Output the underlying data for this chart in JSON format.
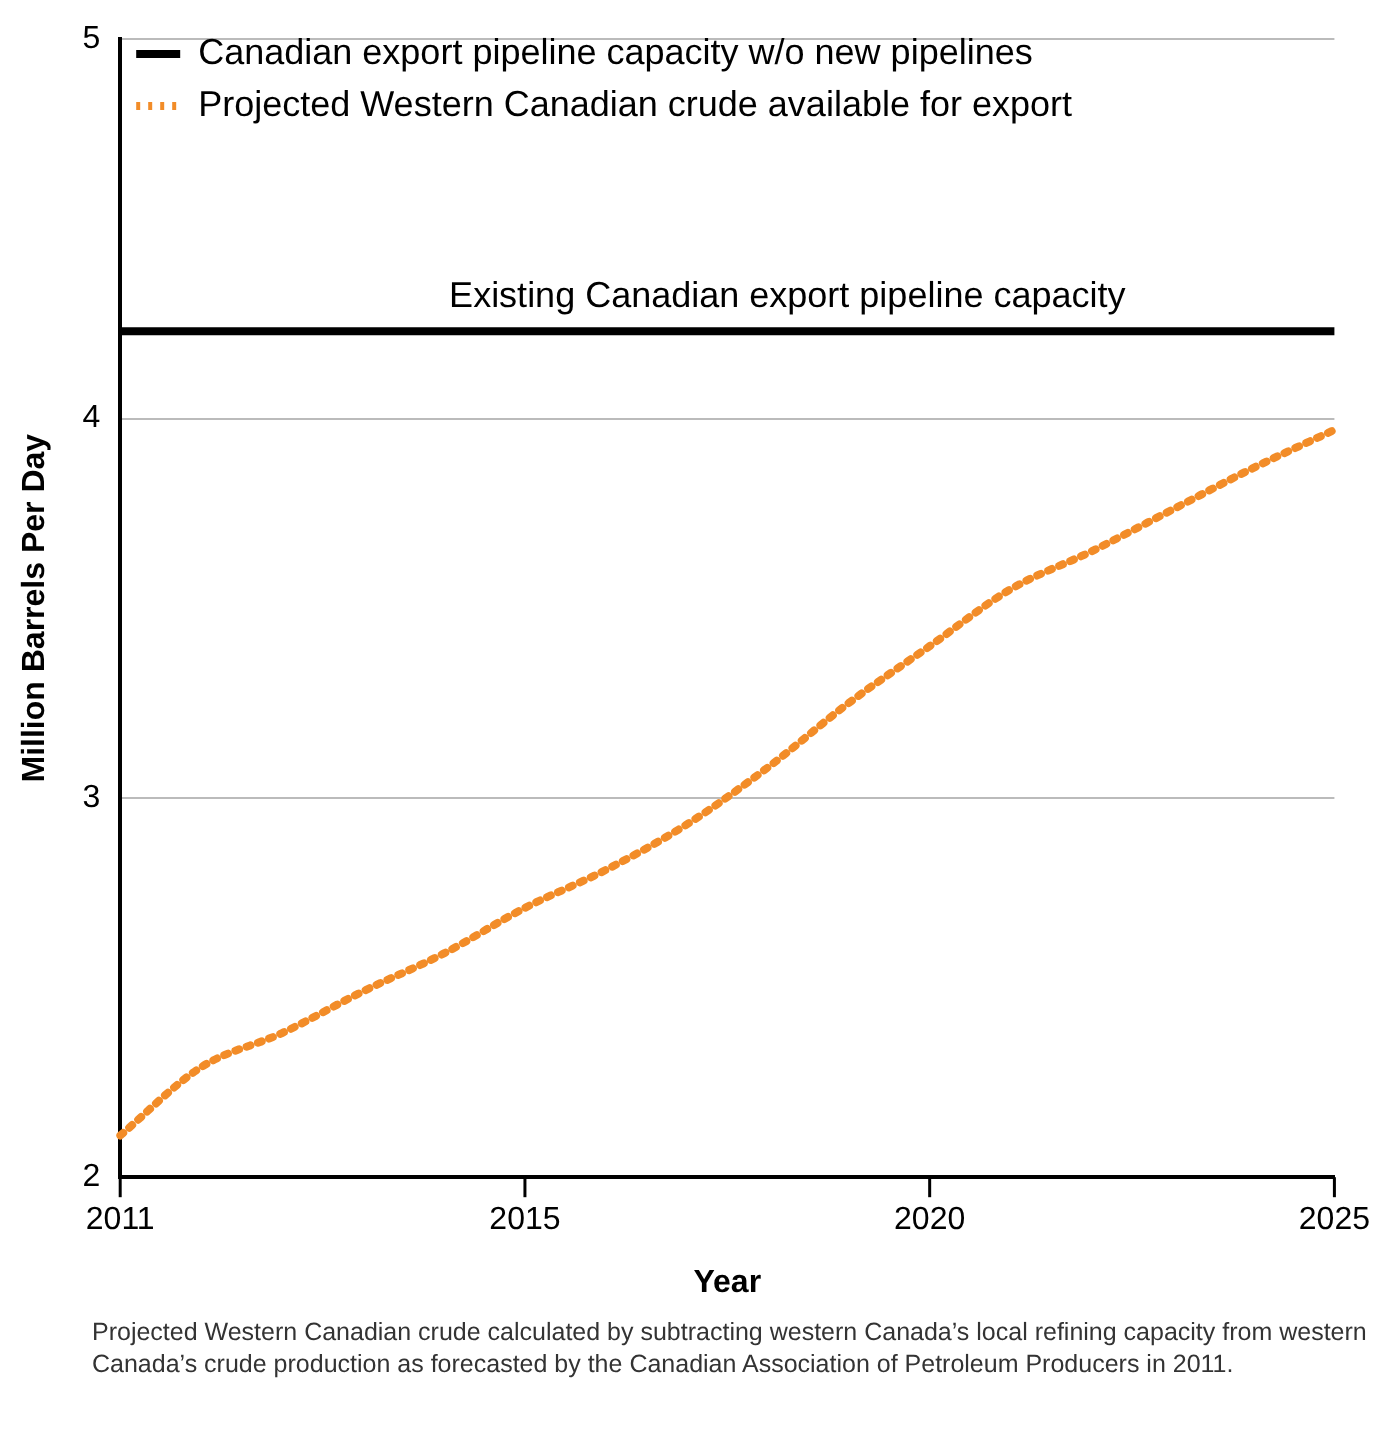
{
  "chart_data": {
    "type": "line",
    "xlabel": "Year",
    "ylabel": "Million Barrels Per Day",
    "categories": [
      "2011",
      null,
      null,
      null,
      null,
      "2015",
      null,
      null,
      null,
      null,
      "2020",
      null,
      null,
      null,
      null,
      "2025"
    ],
    "series": [
      {
        "name": "Canadian export pipeline capacity w/o new pipelines",
        "color": "#000000",
        "line_style": "solid",
        "values": [
          4.23,
          4.23,
          4.23,
          4.23,
          4.23,
          4.23,
          4.23,
          4.23,
          4.23,
          4.23,
          4.23,
          4.23,
          4.23,
          4.23,
          4.23,
          4.23
        ]
      },
      {
        "name": "Projected Western Canadian crude available for export",
        "color": "#f28c28",
        "line_style": "dotted",
        "values": [
          2.11,
          2.29,
          2.38,
          2.49,
          2.59,
          2.71,
          2.81,
          2.93,
          3.08,
          3.25,
          3.4,
          3.55,
          3.65,
          3.76,
          3.87,
          3.97
        ]
      }
    ],
    "ylim": [
      2,
      5
    ],
    "yticks": [
      2,
      3,
      4,
      5
    ],
    "grid": "y",
    "legend": "top left",
    "marker": "none",
    "annotations": [
      {
        "text": "Existing Canadian export pipeline capacity",
        "y": 4.23
      },
      "Projected Western Canadian crude calculated by subtracting western Canada’s local refining capacity from western Canada’s crude production as forecasted by the Canadian Association of Petroleum Producers in 2011."
    ]
  }
}
